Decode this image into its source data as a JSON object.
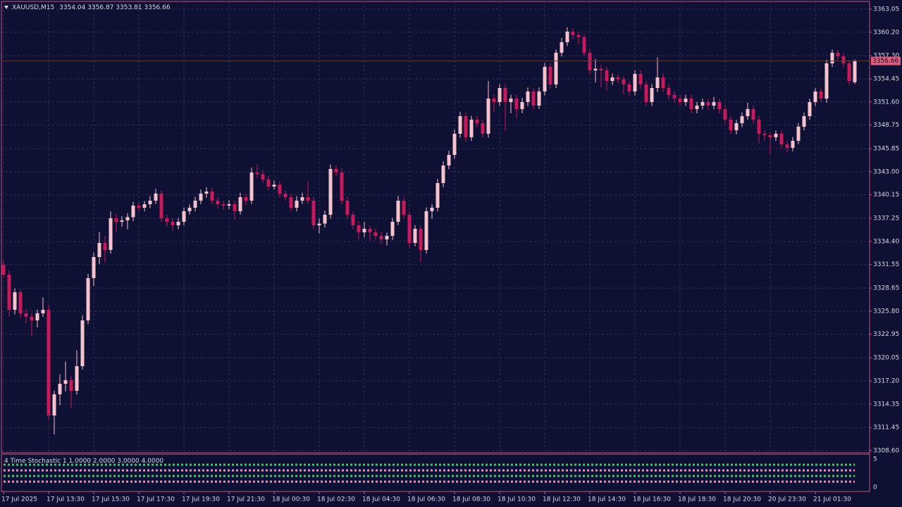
{
  "chart_data": {
    "type": "candlestick",
    "symbol": "XAUUSD,M15",
    "colors": {
      "up": "#f6c3cc",
      "down": "#c8195a"
    },
    "grid": true,
    "ylim": [
      3308.34,
      3364.0
    ],
    "yticks": [
      {
        "value": 3308.6,
        "label": "3308.60"
      },
      3311.45,
      3314.35,
      {
        "value": 3317.2,
        "label": "3317.20"
      },
      3320.05,
      3322.95,
      {
        "value": 3325.8,
        "label": "3325.80"
      },
      3328.65,
      3331.55,
      {
        "value": 3334.4,
        "label": "3334.40"
      },
      3337.25,
      3340.15,
      {
        "value": 3343,
        "label": "3343.00"
      },
      3345.85,
      3348.75,
      {
        "value": 3351.6,
        "label": "3351.60"
      },
      3354.45,
      {
        "value": 3357.3,
        "label": "3357.30"
      },
      {
        "value": 3360.2,
        "label": "3360.20"
      },
      3363.05
    ],
    "xticks": [
      {
        "value": 0,
        "label": "17 Jul 2025"
      },
      {
        "value": 8,
        "label": "17 Jul 13:30"
      },
      {
        "value": 16,
        "label": "17 Jul 15:30"
      },
      {
        "value": 24,
        "label": "17 Jul 17:30"
      },
      {
        "value": 32,
        "label": "17 Jul 19:30"
      },
      {
        "value": 40,
        "label": "17 Jul 21:30"
      },
      {
        "value": 48,
        "label": "18 Jul 00:30"
      },
      {
        "value": 56,
        "label": "18 Jul 02:30"
      },
      {
        "value": 64,
        "label": "18 Jul 04:30"
      },
      {
        "value": 72,
        "label": "18 Jul 06:30"
      },
      {
        "value": 80,
        "label": "18 Jul 08:30"
      },
      {
        "value": 88,
        "label": "18 Jul 10:30"
      },
      {
        "value": 96,
        "label": "18 Jul 12:30"
      },
      {
        "value": 104,
        "label": "18 Jul 14:30"
      },
      {
        "value": 112,
        "label": "18 Jul 16:30"
      },
      {
        "value": 120,
        "label": "18 Jul 18:30"
      },
      {
        "value": 128,
        "label": "18 Jul 20:30"
      },
      {
        "value": 136,
        "label": "20 Jul 23:30"
      },
      {
        "value": 144,
        "label": "21 Jul 01:30"
      }
    ],
    "ohlc": [
      [
        3331.5,
        3332.1,
        3329.9,
        3330.31
      ],
      [
        3330.31,
        3330.8,
        3325.2,
        3325.97
      ],
      [
        3325.97,
        3328.6,
        3325.4,
        3328.14
      ],
      [
        3328.14,
        3328.5,
        3324.9,
        3325.54
      ],
      [
        3325.54,
        3326.1,
        3324.3,
        3325.1
      ],
      [
        3325.1,
        3325.6,
        3322.7,
        3324.67
      ],
      [
        3324.67,
        3326.0,
        3323.8,
        3325.54
      ],
      [
        3325.54,
        3327.5,
        3325.1,
        3325.97
      ],
      [
        3325.97,
        3326.6,
        3312.4,
        3312.94
      ],
      [
        3312.94,
        3316.0,
        3310.6,
        3315.55
      ],
      [
        3315.55,
        3318.0,
        3314.2,
        3316.85
      ],
      [
        3316.85,
        3319.6,
        3315.9,
        3317.29
      ],
      [
        3317.29,
        3317.8,
        3313.8,
        3315.98
      ],
      [
        3315.98,
        3321.0,
        3315.5,
        3319.02
      ],
      [
        3319.02,
        3325.3,
        3318.6,
        3324.67
      ],
      [
        3324.67,
        3330.4,
        3324.2,
        3329.88
      ],
      [
        3329.88,
        3333.0,
        3328.9,
        3332.48
      ],
      [
        3332.48,
        3335.6,
        3331.6,
        3334.22
      ],
      [
        3334.22,
        3335.1,
        3331.8,
        3333.35
      ],
      [
        3333.35,
        3338.1,
        3332.9,
        3337.26
      ],
      [
        3337.26,
        3337.8,
        3335.6,
        3336.83
      ],
      [
        3336.83,
        3337.5,
        3336.2,
        3337.0
      ],
      [
        3337.0,
        3337.9,
        3335.9,
        3337.4
      ],
      [
        3337.4,
        3339.3,
        3336.9,
        3338.82
      ],
      [
        3338.82,
        3339.2,
        3338.1,
        3338.56
      ],
      [
        3338.56,
        3339.4,
        3338.1,
        3338.99
      ],
      [
        3338.99,
        3340.0,
        3338.5,
        3339.43
      ],
      [
        3339.43,
        3340.9,
        3339.0,
        3340.3
      ],
      [
        3340.3,
        3340.7,
        3336.8,
        3337.26
      ],
      [
        3337.26,
        3337.7,
        3336.2,
        3336.83
      ],
      [
        3336.83,
        3337.3,
        3335.7,
        3336.39
      ],
      [
        3336.39,
        3337.3,
        3335.9,
        3336.83
      ],
      [
        3336.83,
        3338.6,
        3336.4,
        3338.13
      ],
      [
        3338.13,
        3339.0,
        3337.7,
        3338.56
      ],
      [
        3338.56,
        3339.9,
        3338.1,
        3339.43
      ],
      [
        3339.43,
        3340.8,
        3339.0,
        3340.3
      ],
      [
        3340.3,
        3341.1,
        3339.8,
        3340.56
      ],
      [
        3340.56,
        3341.0,
        3339.0,
        3339.43
      ],
      [
        3339.43,
        3339.9,
        3338.5,
        3338.99
      ],
      [
        3338.99,
        3339.4,
        3338.3,
        3338.82
      ],
      [
        3338.82,
        3339.5,
        3338.4,
        3338.99
      ],
      [
        3338.99,
        3339.4,
        3337.1,
        3338.13
      ],
      [
        3338.13,
        3340.4,
        3337.7,
        3339.86
      ],
      [
        3339.86,
        3340.3,
        3338.9,
        3339.43
      ],
      [
        3339.43,
        3343.5,
        3339.0,
        3342.91
      ],
      [
        3342.91,
        3343.9,
        3342.2,
        3342.7
      ],
      [
        3342.7,
        3343.2,
        3341.6,
        3342.04
      ],
      [
        3342.04,
        3342.5,
        3340.7,
        3341.17
      ],
      [
        3341.17,
        3341.9,
        3340.8,
        3341.4
      ],
      [
        3341.4,
        3341.8,
        3339.8,
        3340.3
      ],
      [
        3340.3,
        3340.7,
        3339.4,
        3339.86
      ],
      [
        3339.86,
        3340.3,
        3338.1,
        3338.56
      ],
      [
        3338.56,
        3340.0,
        3338.1,
        3339.43
      ],
      [
        3339.43,
        3340.4,
        3339.0,
        3339.86
      ],
      [
        3339.86,
        3341.8,
        3339.0,
        3339.43
      ],
      [
        3339.43,
        3339.9,
        3335.9,
        3336.39
      ],
      [
        3336.39,
        3337.2,
        3335.4,
        3336.6
      ],
      [
        3336.6,
        3338.2,
        3336.1,
        3337.69
      ],
      [
        3337.69,
        3343.9,
        3337.2,
        3343.34
      ],
      [
        3343.34,
        3343.8,
        3342.4,
        3342.91
      ],
      [
        3342.91,
        3343.4,
        3339.0,
        3339.43
      ],
      [
        3339.43,
        3339.9,
        3337.2,
        3337.69
      ],
      [
        3337.69,
        3338.1,
        3335.9,
        3336.39
      ],
      [
        3336.39,
        3336.9,
        3334.6,
        3335.52
      ],
      [
        3335.52,
        3336.8,
        3334.9,
        3335.96
      ],
      [
        3335.96,
        3336.4,
        3334.5,
        3335.52
      ],
      [
        3335.52,
        3336.0,
        3334.6,
        3335.09
      ],
      [
        3335.09,
        3335.6,
        3334.0,
        3334.65
      ],
      [
        3334.65,
        3335.5,
        3333.9,
        3335.09
      ],
      [
        3335.09,
        3337.3,
        3334.6,
        3336.83
      ],
      [
        3336.83,
        3340.0,
        3336.4,
        3339.43
      ],
      [
        3339.43,
        3339.9,
        3337.2,
        3337.69
      ],
      [
        3337.69,
        3338.1,
        3333.7,
        3334.22
      ],
      [
        3334.22,
        3336.4,
        3333.8,
        3335.96
      ],
      [
        3335.96,
        3336.4,
        3331.9,
        3333.35
      ],
      [
        3333.35,
        3338.6,
        3332.9,
        3338.13
      ],
      [
        3338.13,
        3339.0,
        3337.2,
        3338.56
      ],
      [
        3338.56,
        3342.1,
        3338.1,
        3341.6
      ],
      [
        3341.6,
        3344.3,
        3341.1,
        3343.77
      ],
      [
        3343.77,
        3345.6,
        3343.3,
        3345.07
      ],
      [
        3345.07,
        3348.2,
        3344.6,
        3347.68
      ],
      [
        3347.68,
        3350.4,
        3347.2,
        3349.85
      ],
      [
        3349.85,
        3350.3,
        3346.7,
        3347.25
      ],
      [
        3347.25,
        3349.9,
        3346.8,
        3349.42
      ],
      [
        3349.42,
        3349.9,
        3348.5,
        3348.98
      ],
      [
        3348.98,
        3349.4,
        3347.2,
        3347.68
      ],
      [
        3347.68,
        3354.2,
        3347.2,
        3352.02
      ],
      [
        3352.02,
        3352.5,
        3350.4,
        3351.59
      ],
      [
        3351.59,
        3353.8,
        3351.1,
        3353.32
      ],
      [
        3353.32,
        3353.8,
        3348.0,
        3351.59
      ],
      [
        3351.59,
        3352.5,
        3350.2,
        3352.02
      ],
      [
        3352.02,
        3352.5,
        3349.6,
        3350.72
      ],
      [
        3350.72,
        3352.1,
        3350.2,
        3351.59
      ],
      [
        3351.59,
        3353.4,
        3351.1,
        3352.89
      ],
      [
        3352.89,
        3353.3,
        3350.7,
        3351.15
      ],
      [
        3351.15,
        3353.4,
        3350.7,
        3352.89
      ],
      [
        3352.89,
        3356.4,
        3352.4,
        3355.93
      ],
      [
        3355.93,
        3356.4,
        3353.3,
        3353.76
      ],
      [
        3353.76,
        3358.1,
        3353.3,
        3357.67
      ],
      [
        3357.67,
        3359.5,
        3357.2,
        3358.97
      ],
      [
        3358.97,
        3360.8,
        3358.5,
        3360.27
      ],
      [
        3360.27,
        3360.7,
        3359.3,
        3359.84
      ],
      [
        3359.84,
        3360.3,
        3358.7,
        3359.6
      ],
      [
        3359.6,
        3360.0,
        3357.2,
        3357.67
      ],
      [
        3357.67,
        3358.1,
        3354.9,
        3355.5
      ],
      [
        3355.5,
        3356.9,
        3354.0,
        3355.7
      ],
      [
        3355.7,
        3356.2,
        3353.4,
        3355.5
      ],
      [
        3355.5,
        3355.9,
        3353.0,
        3354.19
      ],
      [
        3354.19,
        3355.1,
        3353.7,
        3354.63
      ],
      [
        3354.63,
        3355.0,
        3353.9,
        3354.4
      ],
      [
        3354.4,
        3354.8,
        3352.6,
        3353.76
      ],
      [
        3353.76,
        3354.2,
        3352.4,
        3352.89
      ],
      [
        3352.89,
        3355.5,
        3352.4,
        3355.06
      ],
      [
        3355.06,
        3355.5,
        3353.2,
        3353.76
      ],
      [
        3353.76,
        3354.2,
        3351.1,
        3351.59
      ],
      [
        3351.59,
        3353.8,
        3351.1,
        3353.32
      ],
      [
        3353.32,
        3357.1,
        3352.8,
        3354.63
      ],
      [
        3354.63,
        3355.1,
        3352.8,
        3353.32
      ],
      [
        3353.32,
        3353.8,
        3351.9,
        3352.46
      ],
      [
        3352.46,
        3352.9,
        3351.5,
        3352.02
      ],
      [
        3352.02,
        3352.5,
        3351.1,
        3351.59
      ],
      [
        3351.59,
        3352.5,
        3351.1,
        3352.02
      ],
      [
        3352.02,
        3352.5,
        3350.2,
        3350.72
      ],
      [
        3350.72,
        3351.6,
        3350.2,
        3351.15
      ],
      [
        3351.15,
        3352.0,
        3350.7,
        3351.59
      ],
      [
        3351.59,
        3352.0,
        3350.6,
        3351.15
      ],
      [
        3351.15,
        3352.2,
        3350.7,
        3351.59
      ],
      [
        3351.59,
        3352.0,
        3350.2,
        3350.72
      ],
      [
        3350.72,
        3351.2,
        3348.9,
        3349.42
      ],
      [
        3349.42,
        3349.9,
        3347.6,
        3348.11
      ],
      [
        3348.11,
        3349.4,
        3347.6,
        3348.98
      ],
      [
        3348.98,
        3350.3,
        3348.5,
        3349.85
      ],
      [
        3349.85,
        3351.5,
        3349.4,
        3350.72
      ],
      [
        3350.72,
        3351.2,
        3348.9,
        3349.42
      ],
      [
        3349.42,
        3349.9,
        3346.5,
        3347.68
      ],
      [
        3347.68,
        3348.1,
        3346.8,
        3347.5
      ],
      [
        3347.5,
        3347.9,
        3345.2,
        3347.25
      ],
      [
        3347.25,
        3348.1,
        3346.8,
        3347.68
      ],
      [
        3347.68,
        3348.1,
        3345.9,
        3346.38
      ],
      [
        3346.38,
        3346.8,
        3345.4,
        3345.94
      ],
      [
        3345.94,
        3347.3,
        3345.5,
        3346.81
      ],
      [
        3346.81,
        3349.0,
        3346.4,
        3348.55
      ],
      [
        3348.55,
        3350.3,
        3348.1,
        3349.85
      ],
      [
        3349.85,
        3352.0,
        3349.4,
        3351.59
      ],
      [
        3351.59,
        3353.3,
        3351.1,
        3352.89
      ],
      [
        3352.89,
        3353.3,
        3351.5,
        3352.02
      ],
      [
        3352.02,
        3356.8,
        3351.5,
        3356.36
      ],
      [
        3356.36,
        3358.1,
        3355.9,
        3357.67
      ],
      [
        3357.67,
        3358.0,
        3356.8,
        3357.23
      ],
      [
        3357.23,
        3357.6,
        3355.9,
        3356.36
      ],
      [
        3356.36,
        3356.8,
        3353.7,
        3354.19
      ],
      [
        3354.04,
        3356.87,
        3353.81,
        3356.66
      ]
    ]
  },
  "indicator": {
    "title": "4 Time Stochastic 1",
    "values": [
      1,
      2,
      3,
      4
    ],
    "value_labels": [
      "1.0000",
      "2.0000",
      "3.0000",
      "4.0000"
    ],
    "colors": [
      "#f08cb8",
      "#34d44a",
      "#f08cb8",
      "#34d44a"
    ],
    "ylim": [
      0,
      5
    ],
    "yticks": [
      0,
      5
    ]
  }
}
